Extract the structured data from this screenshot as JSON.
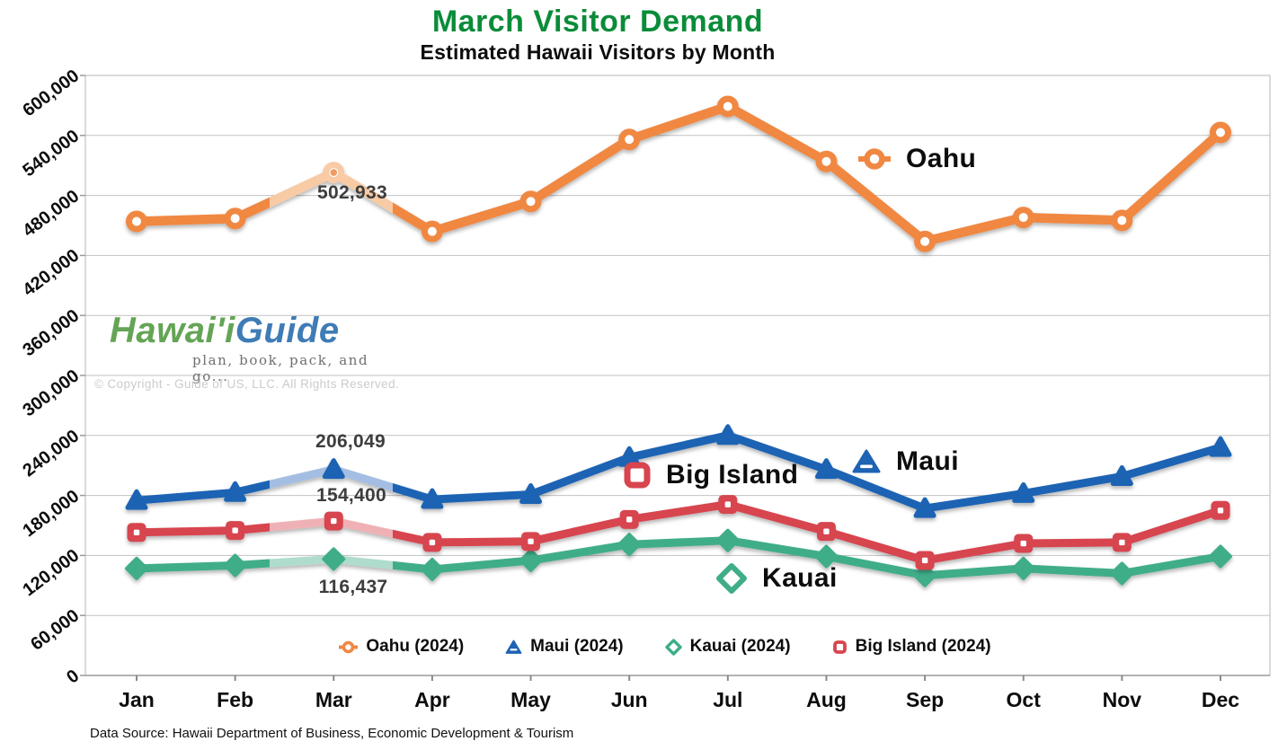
{
  "title": {
    "main": "March Visitor Demand",
    "subtitle": "Estimated Hawaii Visitors by Month"
  },
  "watermark": {
    "brand_part1": "Hawai'i",
    "brand_part2": "Guide",
    "tagline": "plan, book, pack, and go...",
    "copyright": "© Copyright - Guide of US, LLC. All Rights Reserved."
  },
  "footer": {
    "data_source": "Data Source: Hawaii Department of Business, Economic Development & Tourism"
  },
  "colors": {
    "title_green": "#0a8c39",
    "grid": "#c2c2c2",
    "axis": "#9a9a9a",
    "annotation_text": "#3d3d3d"
  },
  "chart_data": {
    "type": "line",
    "title": "March Visitor Demand",
    "subtitle": "Estimated Hawaii Visitors by Month",
    "categories": [
      "Jan",
      "Feb",
      "Mar",
      "Apr",
      "May",
      "Jun",
      "Jul",
      "Aug",
      "Sep",
      "Oct",
      "Nov",
      "Dec"
    ],
    "ylim": [
      0,
      600000
    ],
    "ytick_step": 60000,
    "ytick_labels": [
      "600,000",
      "540,000",
      "480,000",
      "420,000",
      "360,000",
      "300,000",
      "240,000",
      "180,000",
      "120,000",
      "60,000",
      "0"
    ],
    "grid": "horizontal",
    "legend_position": "bottom-center",
    "highlight_note": "Line segments around March are drawn in a lighter tint to emphasize March demand",
    "series": [
      {
        "name": "Oahu",
        "legend_label": "Oahu (2024)",
        "marker": "open-circle",
        "color": "#F08843",
        "light_color": "#F8CBA5",
        "march_label": "502,933",
        "values": [
          454000,
          457000,
          502933,
          444000,
          474000,
          536000,
          569000,
          514000,
          434000,
          458000,
          455000,
          543000
        ]
      },
      {
        "name": "Maui",
        "legend_label": "Maui (2024)",
        "marker": "triangle",
        "color": "#1E63B4",
        "light_color": "#A3BEE2",
        "march_label": "206,049",
        "values": [
          175000,
          183000,
          206049,
          176000,
          181000,
          218000,
          240000,
          206000,
          167000,
          182000,
          199000,
          228000
        ]
      },
      {
        "name": "Kauai",
        "legend_label": "Kauai (2024)",
        "marker": "diamond",
        "color": "#3FAD89",
        "light_color": "#AFDCCC",
        "march_label": "116,437",
        "values": [
          107000,
          110000,
          116437,
          106000,
          115000,
          131000,
          135000,
          119000,
          100000,
          107000,
          102000,
          119000
        ]
      },
      {
        "name": "Big Island",
        "legend_label": "Big Island (2024)",
        "marker": "open-square",
        "color": "#D7454F",
        "light_color": "#EFB1B5",
        "march_label": "154,400",
        "values": [
          143000,
          145000,
          154400,
          133000,
          134000,
          156000,
          171000,
          144000,
          115000,
          132000,
          133000,
          165000
        ]
      }
    ]
  }
}
